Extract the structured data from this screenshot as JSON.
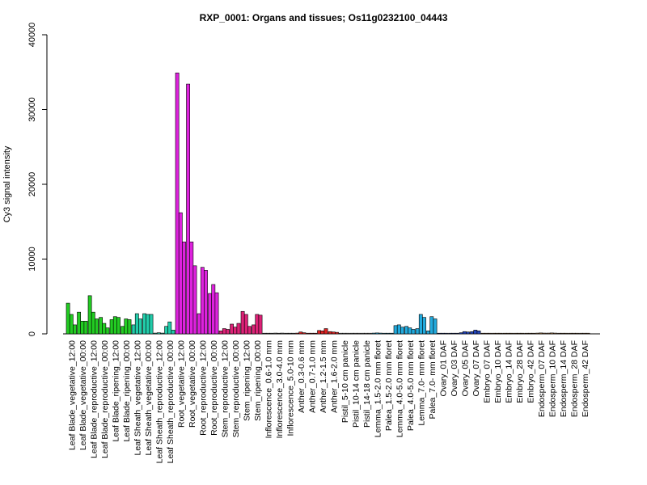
{
  "chart_data": {
    "type": "bar",
    "title": "RXP_0001: Organs and tissues; Os11g0232100_04443",
    "xlabel": "",
    "ylabel": "Cy3 signal intensity",
    "ylim": [
      0,
      40000
    ],
    "yticks": [
      0,
      10000,
      20000,
      30000,
      40000
    ],
    "grid": false,
    "legend": "none",
    "categories": [
      "Leaf Blade_vegetative_12:00",
      "Leaf Blade_vegetative_00:00",
      "Leaf Blade_reproductive_12:00",
      "Leaf Blade_reproductive_00:00",
      "Leaf Blade_ripening_12:00",
      "Leaf Blade_ripening_00:00",
      "Leaf Sheath_vegetative_12:00",
      "Leaf Sheath_vegetative_00:00",
      "Leaf Sheath_reproductive_12:00",
      "Leaf Sheath_reproductive_00:00",
      "Root_vegetative_12:00",
      "Root_vegetative_00:00",
      "Root_reproductive_12:00",
      "Root_reproductive_00:00",
      "Stem_reproductive_12:00",
      "Stem_reproductive_00:00",
      "Stem_ripening_12:00",
      "Stem_ripening_00:00",
      "Inflorescence_0.6-1.0 mm",
      "Inflorescence_3.0-4.0 mm",
      "Inflorescence_5.0-10 mm",
      "Anther_0.3-0.6 mm",
      "Anther_0.7-1.0 mm",
      "Anther_1.2-1.5 mm",
      "Anther_1.6-2.0 mm",
      "Pistil_5-10 cm panicle",
      "Pistil_10-14 cm panicle",
      "Pistil_14-18 cm panicle",
      "Lemma_1.5-2.0 mm floret",
      "Palea_1.5-2.0 mm floret",
      "Lemma_4.0-5.0 mm floret",
      "Palea_4.0-5.0 mm floret",
      "Lemma_7.0- mm floret",
      "Palea_7.0- mm floret",
      "Ovary_01 DAF",
      "Ovary_03 DAF",
      "Ovary_05 DAF",
      "Ovary_07 DAF",
      "Embryo_07 DAF",
      "Embryo_10 DAF",
      "Embryo_14 DAF",
      "Embryo_28 DAF",
      "Embryo_42 DAF",
      "Endosperm_07 DAF",
      "Endosperm_10 DAF",
      "Endosperm_14 DAF",
      "Endosperm_28 DAF",
      "Endosperm_42 DAF"
    ],
    "colors": {
      "leaf": "#22cc22",
      "sheath": "#22ccaa",
      "root": "#dd22dd",
      "stem": "#dd2277",
      "inflorescence": "#777777",
      "anther": "#dd2222",
      "pistil": "#bbbbbb",
      "floret": "#22aadd",
      "ovary": "#2244bb",
      "embryo": "#996633",
      "endosperm": "#aa7744"
    },
    "group_colors": [
      "leaf",
      "leaf",
      "leaf",
      "leaf",
      "leaf",
      "leaf",
      "sheath",
      "sheath",
      "sheath",
      "sheath",
      "root",
      "root",
      "root",
      "root",
      "stem",
      "stem",
      "stem",
      "stem",
      "inflorescence",
      "inflorescence",
      "inflorescence",
      "anther",
      "anther",
      "anther",
      "anther",
      "pistil",
      "pistil",
      "pistil",
      "floret",
      "floret",
      "floret",
      "floret",
      "floret",
      "floret",
      "ovary",
      "ovary",
      "ovary",
      "ovary",
      "embryo",
      "embryo",
      "embryo",
      "embryo",
      "embryo",
      "endosperm",
      "endosperm",
      "endosperm",
      "endosperm",
      "endosperm"
    ],
    "replicate_values": [
      [
        4100,
        2600,
        1200
      ],
      [
        2900,
        1700,
        1700
      ],
      [
        5100,
        2900,
        2000
      ],
      [
        2200,
        1400,
        800
      ],
      [
        1900,
        2300,
        2200
      ],
      [
        1000,
        2000,
        1900
      ],
      [
        1200,
        2700,
        2000
      ],
      [
        2700,
        2600,
        2600
      ],
      [
        100,
        150,
        100
      ],
      [
        1000,
        1600,
        500
      ],
      [
        34900,
        16200,
        12300
      ],
      [
        33400,
        12300,
        9100
      ],
      [
        2700,
        8900,
        8500
      ],
      [
        5400,
        6600,
        5500
      ],
      [
        400,
        700,
        600
      ],
      [
        1300,
        900,
        1400
      ],
      [
        3000,
        2600,
        1000
      ],
      [
        1200,
        2600,
        2500
      ],
      [
        80,
        60,
        80
      ],
      [
        100,
        80,
        100
      ],
      [
        80,
        60,
        60
      ],
      [
        100,
        250,
        150
      ],
      [
        80,
        60,
        80
      ],
      [
        450,
        400,
        700
      ],
      [
        300,
        250,
        200
      ],
      [
        60,
        60,
        60
      ],
      [
        60,
        60,
        60
      ],
      [
        60,
        60,
        60
      ],
      [
        100,
        120,
        100
      ],
      [
        80,
        80,
        80
      ],
      [
        1100,
        1200,
        900
      ],
      [
        1000,
        800,
        600
      ],
      [
        700,
        2600,
        2200
      ],
      [
        400,
        2300,
        2000
      ],
      [
        80,
        60,
        60
      ],
      [
        60,
        60,
        60
      ],
      [
        150,
        300,
        250
      ],
      [
        300,
        500,
        400
      ],
      [
        80,
        60,
        60
      ],
      [
        60,
        80,
        60
      ],
      [
        60,
        60,
        60
      ],
      [
        60,
        60,
        60
      ],
      [
        60,
        60,
        60
      ],
      [
        100,
        120,
        100
      ],
      [
        100,
        120,
        100
      ],
      [
        80,
        80,
        80
      ],
      [
        60,
        60,
        60
      ],
      [
        80,
        60,
        60
      ]
    ]
  }
}
